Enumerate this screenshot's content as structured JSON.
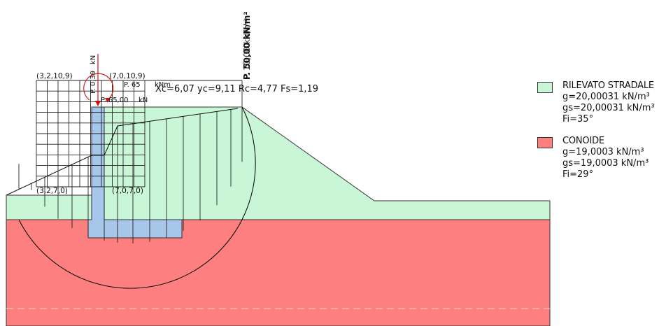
{
  "colors": {
    "rilevato": "#c9f6d6",
    "conoide": "#fd7f7f",
    "wall": "#a6c6ea",
    "lines": "#222222",
    "arrow": "#d01010"
  },
  "result_label": "Xc=6,07 yc=9,11 Rc=4,77 Fs=1,19",
  "grid_labels": {
    "top_left": "(3,2,10,9)",
    "top_right": "(7,0,10,9)",
    "bottom_left": "(3,2,7,0)",
    "bottom_right": "(7,0,7,0)"
  },
  "loads": {
    "distributed_a": "P. 50,00 kN/m²",
    "distributed_b": "P. 10,00 kN/m²",
    "vertical": "P. 0,39",
    "vertical_unit": "kN",
    "moment_value": "P. 65",
    "moment_unit": "kNm",
    "horizontal": "P. 65,00",
    "horizontal_unit": "kN"
  },
  "legend": [
    {
      "name": "RILEVATO STRADALE",
      "color": "#c9f6d6",
      "props": [
        "g=20,00031 kN/m³",
        "gs=20,00031 kN/m³",
        "Fi=35°"
      ]
    },
    {
      "name": "CONOIDE",
      "color": "#fd7f7f",
      "props": [
        "g=19,0003 kN/m³",
        "gs=19,0003 kN/m³",
        "Fi=29°"
      ]
    }
  ]
}
